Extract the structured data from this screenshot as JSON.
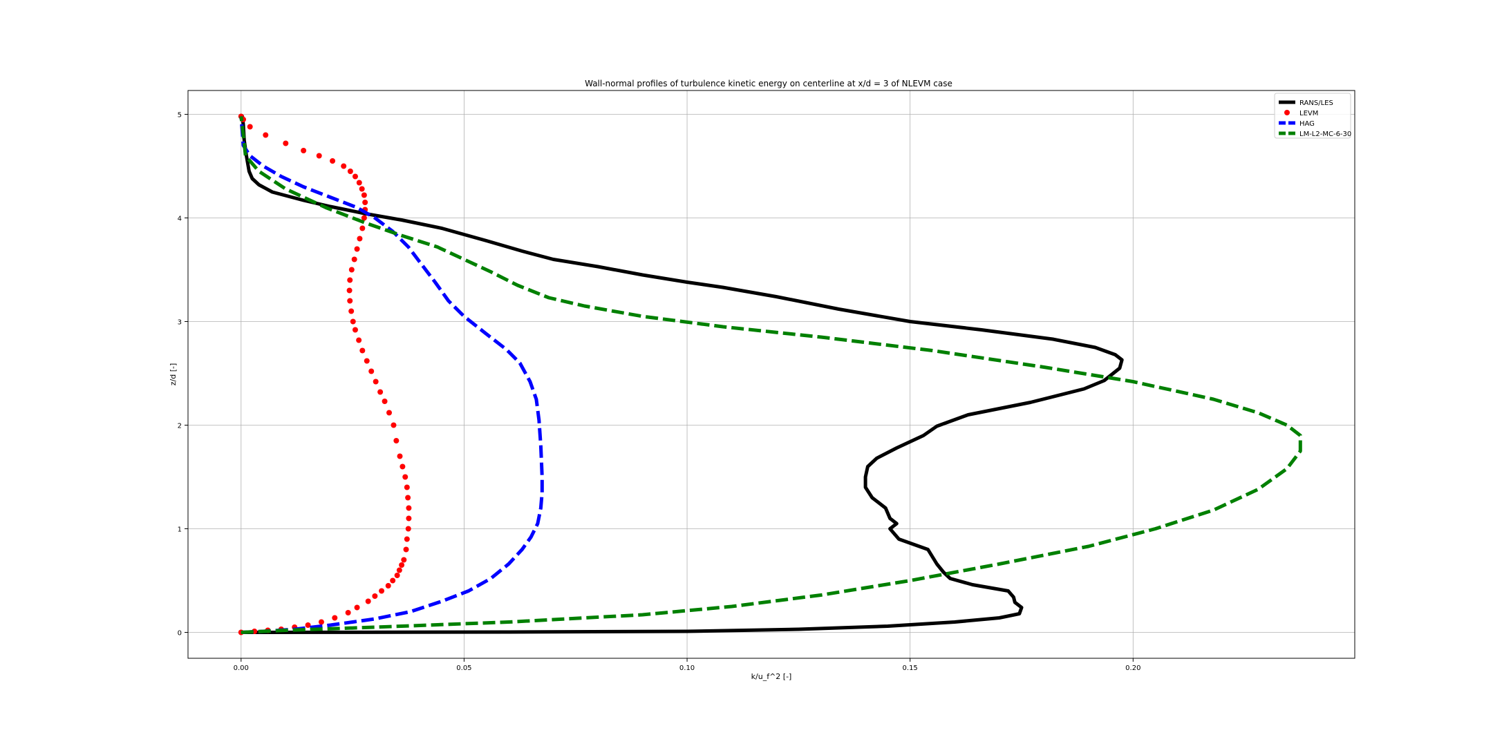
{
  "chart_data": {
    "type": "line",
    "title": "Wall-normal profiles of turbulence kinetic energy on centerline at x/d = 3 of NLEVM case",
    "xlabel": "k/u_f^2 [-]",
    "ylabel": "z/d [-]",
    "xlim": [
      -0.0119,
      0.2497
    ],
    "ylim": [
      -0.25,
      5.23
    ],
    "xticks": [
      0.0,
      0.05,
      0.1,
      0.15,
      0.2
    ],
    "xtick_labels": [
      "0.00",
      "0.05",
      "0.10",
      "0.15",
      "0.20"
    ],
    "yticks": [
      0,
      1,
      2,
      3,
      4,
      5
    ],
    "ytick_labels": [
      "0",
      "1",
      "2",
      "3",
      "4",
      "5"
    ],
    "grid": true,
    "legend_position": "top-right",
    "series": [
      {
        "name": "RANS/LES",
        "style": "solid",
        "color": "#000000",
        "points": [
          [
            0.0,
            0.0
          ],
          [
            0.02,
            0.001
          ],
          [
            0.06,
            0.003
          ],
          [
            0.1,
            0.01
          ],
          [
            0.125,
            0.03
          ],
          [
            0.145,
            0.06
          ],
          [
            0.16,
            0.1
          ],
          [
            0.17,
            0.14
          ],
          [
            0.1745,
            0.18
          ],
          [
            0.175,
            0.24
          ],
          [
            0.1735,
            0.29
          ],
          [
            0.1732,
            0.34
          ],
          [
            0.172,
            0.4
          ],
          [
            0.164,
            0.46
          ],
          [
            0.159,
            0.52
          ],
          [
            0.1575,
            0.58
          ],
          [
            0.156,
            0.66
          ],
          [
            0.154,
            0.8
          ],
          [
            0.1475,
            0.9
          ],
          [
            0.1455,
            1.0
          ],
          [
            0.147,
            1.05
          ],
          [
            0.1455,
            1.1
          ],
          [
            0.1445,
            1.2
          ],
          [
            0.1415,
            1.3
          ],
          [
            0.14,
            1.4
          ],
          [
            0.14,
            1.5
          ],
          [
            0.1405,
            1.6
          ],
          [
            0.1425,
            1.68
          ],
          [
            0.147,
            1.78
          ],
          [
            0.153,
            1.9
          ],
          [
            0.156,
            1.99
          ],
          [
            0.163,
            2.1
          ],
          [
            0.177,
            2.22
          ],
          [
            0.189,
            2.35
          ],
          [
            0.1935,
            2.43
          ],
          [
            0.197,
            2.55
          ],
          [
            0.1975,
            2.63
          ],
          [
            0.196,
            2.68
          ],
          [
            0.1915,
            2.75
          ],
          [
            0.182,
            2.83
          ],
          [
            0.166,
            2.92
          ],
          [
            0.15,
            3.0
          ],
          [
            0.134,
            3.12
          ],
          [
            0.12,
            3.24
          ],
          [
            0.108,
            3.33
          ],
          [
            0.1,
            3.38
          ],
          [
            0.09,
            3.45
          ],
          [
            0.08,
            3.53
          ],
          [
            0.07,
            3.6
          ],
          [
            0.063,
            3.68
          ],
          [
            0.055,
            3.78
          ],
          [
            0.045,
            3.9
          ],
          [
            0.036,
            3.98
          ],
          [
            0.028,
            4.04
          ],
          [
            0.02,
            4.11
          ],
          [
            0.014,
            4.17
          ],
          [
            0.007,
            4.25
          ],
          [
            0.004,
            4.32
          ],
          [
            0.0025,
            4.38
          ],
          [
            0.0018,
            4.45
          ],
          [
            0.0012,
            4.6
          ],
          [
            0.0007,
            4.75
          ],
          [
            0.0005,
            4.9
          ],
          [
            0.0003,
            4.98
          ],
          [
            0.0,
            4.98
          ]
        ]
      },
      {
        "name": "LEVM",
        "style": "markers",
        "color": "#ff0000",
        "points": [
          [
            0.0,
            0.0
          ],
          [
            0.003,
            0.01
          ],
          [
            0.006,
            0.02
          ],
          [
            0.009,
            0.03
          ],
          [
            0.012,
            0.05
          ],
          [
            0.015,
            0.07
          ],
          [
            0.018,
            0.1
          ],
          [
            0.021,
            0.14
          ],
          [
            0.024,
            0.19
          ],
          [
            0.026,
            0.24
          ],
          [
            0.0285,
            0.3
          ],
          [
            0.03,
            0.35
          ],
          [
            0.0315,
            0.4
          ],
          [
            0.033,
            0.45
          ],
          [
            0.034,
            0.5
          ],
          [
            0.035,
            0.55
          ],
          [
            0.0355,
            0.6
          ],
          [
            0.036,
            0.65
          ],
          [
            0.0365,
            0.7
          ],
          [
            0.037,
            0.8
          ],
          [
            0.0372,
            0.9
          ],
          [
            0.0375,
            1.0
          ],
          [
            0.0376,
            1.1
          ],
          [
            0.0376,
            1.2
          ],
          [
            0.0374,
            1.3
          ],
          [
            0.0372,
            1.4
          ],
          [
            0.0368,
            1.5
          ],
          [
            0.0362,
            1.6
          ],
          [
            0.0356,
            1.7
          ],
          [
            0.0348,
            1.85
          ],
          [
            0.0342,
            2.0
          ],
          [
            0.0332,
            2.12
          ],
          [
            0.0322,
            2.23
          ],
          [
            0.0312,
            2.32
          ],
          [
            0.0302,
            2.42
          ],
          [
            0.0292,
            2.52
          ],
          [
            0.0282,
            2.62
          ],
          [
            0.0272,
            2.72
          ],
          [
            0.0264,
            2.82
          ],
          [
            0.0256,
            2.92
          ],
          [
            0.0251,
            3.0
          ],
          [
            0.0247,
            3.1
          ],
          [
            0.0244,
            3.2
          ],
          [
            0.0243,
            3.3
          ],
          [
            0.0244,
            3.4
          ],
          [
            0.0248,
            3.5
          ],
          [
            0.0254,
            3.6
          ],
          [
            0.026,
            3.7
          ],
          [
            0.0266,
            3.8
          ],
          [
            0.0272,
            3.9
          ],
          [
            0.0276,
            4.0
          ],
          [
            0.0278,
            4.08
          ],
          [
            0.0278,
            4.15
          ],
          [
            0.0276,
            4.22
          ],
          [
            0.0271,
            4.28
          ],
          [
            0.0265,
            4.34
          ],
          [
            0.0256,
            4.4
          ],
          [
            0.0245,
            4.45
          ],
          [
            0.023,
            4.5
          ],
          [
            0.0205,
            4.55
          ],
          [
            0.0175,
            4.6
          ],
          [
            0.014,
            4.65
          ],
          [
            0.01,
            4.72
          ],
          [
            0.0055,
            4.8
          ],
          [
            0.002,
            4.88
          ],
          [
            0.0005,
            4.95
          ],
          [
            0.0,
            4.98
          ]
        ]
      },
      {
        "name": "HAG",
        "style": "dashed",
        "color": "#0000ff",
        "points": [
          [
            0.0,
            0.0
          ],
          [
            0.005,
            0.01
          ],
          [
            0.012,
            0.03
          ],
          [
            0.02,
            0.07
          ],
          [
            0.03,
            0.13
          ],
          [
            0.038,
            0.2
          ],
          [
            0.045,
            0.3
          ],
          [
            0.051,
            0.4
          ],
          [
            0.056,
            0.52
          ],
          [
            0.06,
            0.66
          ],
          [
            0.063,
            0.8
          ],
          [
            0.065,
            0.92
          ],
          [
            0.0665,
            1.05
          ],
          [
            0.0672,
            1.2
          ],
          [
            0.0675,
            1.35
          ],
          [
            0.0675,
            1.5
          ],
          [
            0.0672,
            1.8
          ],
          [
            0.0668,
            2.05
          ],
          [
            0.0662,
            2.25
          ],
          [
            0.0648,
            2.42
          ],
          [
            0.0625,
            2.6
          ],
          [
            0.0595,
            2.73
          ],
          [
            0.055,
            2.88
          ],
          [
            0.05,
            3.05
          ],
          [
            0.0465,
            3.2
          ],
          [
            0.0435,
            3.38
          ],
          [
            0.0405,
            3.55
          ],
          [
            0.0375,
            3.72
          ],
          [
            0.034,
            3.87
          ],
          [
            0.03,
            4.0
          ],
          [
            0.026,
            4.1
          ],
          [
            0.02,
            4.2
          ],
          [
            0.014,
            4.3
          ],
          [
            0.009,
            4.4
          ],
          [
            0.005,
            4.5
          ],
          [
            0.002,
            4.6
          ],
          [
            0.0005,
            4.7
          ],
          [
            0.0,
            4.98
          ]
        ]
      },
      {
        "name": "LM-L2-MC-6-30",
        "style": "dashed",
        "color": "#008000",
        "points": [
          [
            0.0,
            0.0
          ],
          [
            0.01,
            0.02
          ],
          [
            0.03,
            0.05
          ],
          [
            0.06,
            0.1
          ],
          [
            0.09,
            0.17
          ],
          [
            0.11,
            0.25
          ],
          [
            0.13,
            0.36
          ],
          [
            0.15,
            0.5
          ],
          [
            0.17,
            0.66
          ],
          [
            0.19,
            0.83
          ],
          [
            0.205,
            1.0
          ],
          [
            0.218,
            1.18
          ],
          [
            0.228,
            1.38
          ],
          [
            0.2345,
            1.58
          ],
          [
            0.2375,
            1.75
          ],
          [
            0.2375,
            1.9
          ],
          [
            0.2345,
            2.0
          ],
          [
            0.228,
            2.12
          ],
          [
            0.218,
            2.25
          ],
          [
            0.2,
            2.42
          ],
          [
            0.18,
            2.56
          ],
          [
            0.155,
            2.72
          ],
          [
            0.13,
            2.85
          ],
          [
            0.108,
            2.95
          ],
          [
            0.09,
            3.05
          ],
          [
            0.077,
            3.15
          ],
          [
            0.069,
            3.23
          ],
          [
            0.062,
            3.35
          ],
          [
            0.056,
            3.48
          ],
          [
            0.05,
            3.6
          ],
          [
            0.044,
            3.72
          ],
          [
            0.036,
            3.83
          ],
          [
            0.028,
            3.95
          ],
          [
            0.019,
            4.1
          ],
          [
            0.01,
            4.28
          ],
          [
            0.004,
            4.45
          ],
          [
            0.001,
            4.6
          ],
          [
            0.0005,
            4.8
          ],
          [
            0.0,
            4.98
          ]
        ]
      }
    ]
  }
}
